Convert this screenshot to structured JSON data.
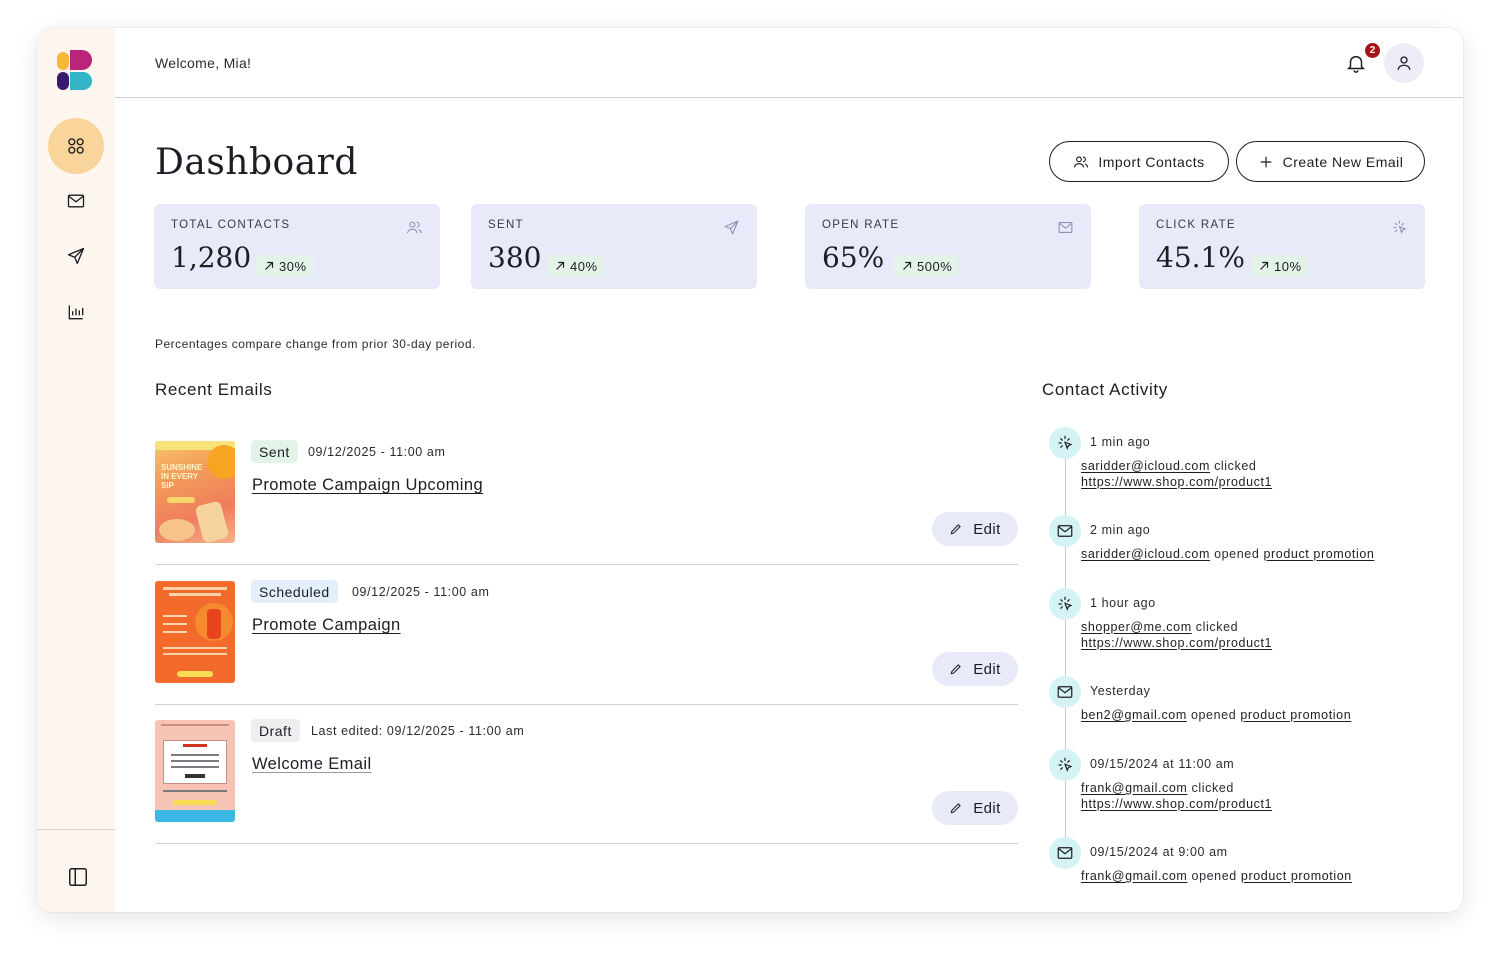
{
  "header": {
    "welcome": "Welcome, Mia!",
    "notification_count": "2"
  },
  "sidebar": {
    "items": [
      {
        "name": "dashboard",
        "icon": "grid-icon",
        "active": true
      },
      {
        "name": "emails",
        "icon": "mail-icon",
        "active": false
      },
      {
        "name": "campaigns",
        "icon": "send-icon",
        "active": false
      },
      {
        "name": "analytics",
        "icon": "bar-chart-icon",
        "active": false
      }
    ],
    "collapse_icon": "sidebar-toggle-icon"
  },
  "page": {
    "title": "Dashboard",
    "import_label": "Import Contacts",
    "create_label": "Create New Email",
    "compare_note": "Percentages compare change from prior 30-day period."
  },
  "stats": [
    {
      "label": "TOTAL CONTACTS",
      "value": "1,280",
      "change": "30%",
      "icon": "users-icon"
    },
    {
      "label": "SENT",
      "value": "380",
      "change": "40%",
      "icon": "send-icon"
    },
    {
      "label": "OPEN RATE",
      "value": "65%",
      "change": "500%",
      "icon": "mail-icon"
    },
    {
      "label": "CLICK RATE",
      "value": "45.1%",
      "change": "10%",
      "icon": "click-icon"
    }
  ],
  "recent_emails": {
    "title": "Recent Emails",
    "edit_label": "Edit",
    "items": [
      {
        "status": "Sent",
        "date": "09/12/2025 - 11:00 am",
        "title": "Promote Campaign Upcoming",
        "thumb_text": "SUNSHINE IN EVERY SIP"
      },
      {
        "status": "Scheduled",
        "date": "09/12/2025 - 11:00 am",
        "title": "Promote Campaign"
      },
      {
        "status": "Draft",
        "date": "Last edited: 09/12/2025 - 11:00 am",
        "title": "Welcome Email"
      }
    ]
  },
  "contact_activity": {
    "title": "Contact Activity",
    "items": [
      {
        "type": "click",
        "icon": "click-icon",
        "time": "1 min ago",
        "email": "saridder@icloud.com",
        "action": "clicked",
        "target": "https://www.shop.com/product1"
      },
      {
        "type": "open",
        "icon": "mail-icon",
        "time": "2 min ago",
        "email": "saridder@icloud.com",
        "action": "opened",
        "target": "product promotion"
      },
      {
        "type": "click",
        "icon": "click-icon",
        "time": "1 hour ago",
        "email": "shopper@me.com",
        "action": "clicked",
        "target": "https://www.shop.com/product1"
      },
      {
        "type": "open",
        "icon": "mail-icon",
        "time": "Yesterday",
        "email": "ben2@gmail.com",
        "action": "opened",
        "target": "product promotion"
      },
      {
        "type": "click",
        "icon": "click-icon",
        "time": "09/15/2024 at 11:00 am",
        "email": "frank@gmail.com",
        "action": "clicked",
        "target": "https://www.shop.com/product1"
      },
      {
        "type": "open",
        "icon": "mail-icon",
        "time": "09/15/2024 at 9:00 am",
        "email": "frank@gmail.com",
        "action": "opened",
        "target": "product promotion"
      }
    ]
  },
  "colors": {
    "sidebar_bg": "#fdf6ee",
    "active_nav": "#f9d59b",
    "stat_bg": "#e9eaf9",
    "positive_change": "#e4f3e8",
    "activity_icon_bg": "#d5f3f4",
    "badge": "#a3141a"
  }
}
